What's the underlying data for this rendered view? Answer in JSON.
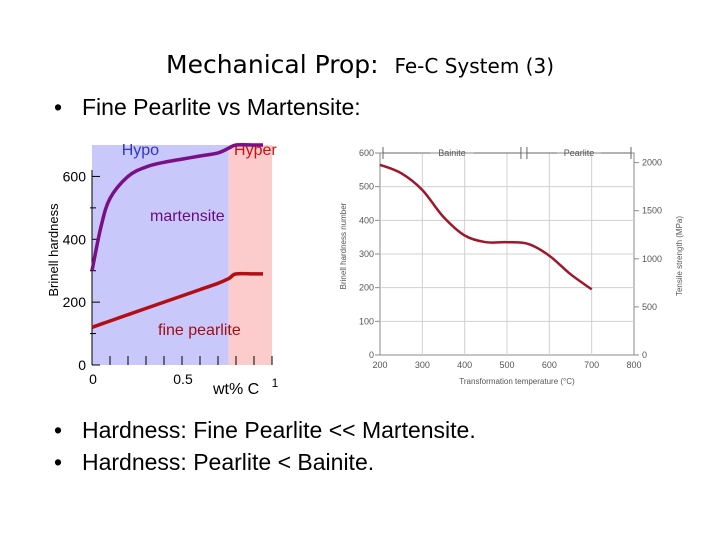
{
  "slide": {
    "title_main": "Mechanical Prop:",
    "title_sub": "Fe-C System (3)",
    "bullet_top": "Fine Pearlite vs Martensite:",
    "bullets_bottom": [
      "Hardness:  Fine Pearlite << Martensite.",
      "Hardness:  Pearlite < Bainite."
    ]
  },
  "chart_data": [
    {
      "type": "line",
      "title": "",
      "xlabel": "wt% C",
      "ylabel": "Brinell hardness",
      "xlim": [
        0,
        1
      ],
      "ylim": [
        0,
        700
      ],
      "x_ticks": [
        "0",
        "0.5",
        "1"
      ],
      "y_ticks": [
        "0",
        "200",
        "400",
        "600"
      ],
      "y_tick_values": [
        0,
        200,
        400,
        600
      ],
      "regions": [
        {
          "label": "Hypo",
          "x_range": [
            0,
            0.76
          ],
          "color": "#c8c8fa"
        },
        {
          "label": "Hyper",
          "x_range": [
            0.76,
            1.0
          ],
          "color": "#fccccc"
        }
      ],
      "series": [
        {
          "name": "martensite",
          "color": "#7a0f86",
          "x": [
            0.0,
            0.05,
            0.1,
            0.2,
            0.3,
            0.4,
            0.5,
            0.6,
            0.7,
            0.76,
            0.8,
            0.9,
            0.95
          ],
          "y": [
            300,
            440,
            530,
            600,
            630,
            645,
            655,
            665,
            675,
            690,
            700,
            700,
            700
          ]
        },
        {
          "name": "fine pearlite",
          "color": "#b30e14",
          "x": [
            0.0,
            0.1,
            0.2,
            0.3,
            0.4,
            0.5,
            0.6,
            0.7,
            0.76,
            0.8,
            0.9,
            0.95
          ],
          "y": [
            120,
            140,
            160,
            180,
            200,
            220,
            240,
            260,
            275,
            290,
            290,
            290
          ]
        }
      ]
    },
    {
      "type": "line",
      "title": "",
      "xlabel": "Transformation temperature (°C)",
      "ylabel": "Brinell hardness number",
      "y2label": "Tensile strength (MPa)",
      "xlim": [
        200,
        800
      ],
      "ylim": [
        0,
        600
      ],
      "x_ticks": [
        200,
        300,
        400,
        500,
        600,
        700,
        800
      ],
      "y_ticks": [
        0,
        100,
        200,
        300,
        400,
        500,
        600
      ],
      "y2_ticks": [
        0,
        500,
        1000,
        1500,
        2000
      ],
      "bands": [
        {
          "label": "Bainite",
          "x_range": [
            200,
            540
          ]
        },
        {
          "label": "Pearlite",
          "x_range": [
            540,
            800
          ]
        }
      ],
      "series": [
        {
          "name": "",
          "color": "#a0162a",
          "x": [
            200,
            250,
            300,
            350,
            400,
            450,
            500,
            550,
            600,
            650,
            700
          ],
          "y": [
            565,
            540,
            490,
            410,
            355,
            335,
            335,
            330,
            295,
            240,
            195
          ]
        }
      ]
    }
  ]
}
